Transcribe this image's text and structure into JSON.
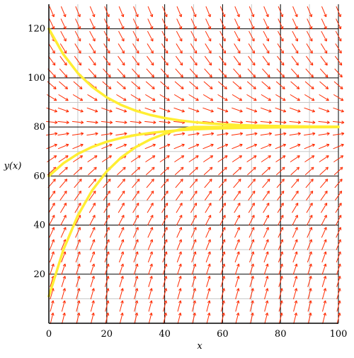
{
  "chart_data": {
    "type": "line",
    "subtype": "direction-field",
    "title": "",
    "xlabel": "x",
    "ylabel": "y(x)",
    "xlim": [
      0,
      100
    ],
    "ylim": [
      0,
      130
    ],
    "x_ticks": [
      0,
      20,
      40,
      60,
      80,
      100
    ],
    "x_tick_labels": [
      "0",
      "20",
      "40",
      "60",
      "80",
      "100"
    ],
    "y_ticks": [
      20,
      40,
      60,
      80,
      100,
      120
    ],
    "y_tick_labels": [
      "20",
      "40",
      "60",
      "80",
      "100",
      "120"
    ],
    "grid": true,
    "equilibrium": 80,
    "rate": 0.06,
    "field_color": "#ff2a00",
    "curve_color": "#ffee33",
    "field_x": [
      1,
      5,
      10,
      15,
      20,
      25,
      30,
      35,
      40,
      45,
      50,
      55,
      60,
      65,
      70,
      75,
      80,
      85,
      90,
      95,
      100
    ],
    "field_y": [
      2,
      7,
      12,
      17,
      22,
      27,
      32,
      37,
      42,
      47,
      52,
      57,
      62,
      67,
      72,
      77,
      82,
      87,
      92,
      97,
      102,
      107,
      112,
      117,
      122,
      127
    ],
    "series": [
      {
        "x": [
          0,
          5,
          10,
          15,
          20,
          25,
          30,
          35,
          40,
          45,
          50,
          55,
          60,
          65,
          70,
          75,
          80,
          85,
          90,
          95,
          100
        ],
        "values": [
          120,
          109.6,
          101.95,
          96.27,
          92.05,
          88.93,
          86.61,
          84.9,
          83.63,
          82.69,
          81.99,
          81.47,
          81.09,
          80.81,
          80.6,
          80.44,
          80.33,
          80.24,
          80.18,
          80.13,
          80.1
        ]
      },
      {
        "x": [
          0,
          5,
          10,
          15,
          20,
          25,
          30,
          35,
          40,
          45,
          50,
          55,
          60,
          65,
          70,
          75,
          80,
          85,
          90,
          95,
          100
        ],
        "values": [
          60,
          65.2,
          69.03,
          71.87,
          73.98,
          75.54,
          76.69,
          77.55,
          78.19,
          78.66,
          79.0,
          79.26,
          79.46,
          79.6,
          79.7,
          79.78,
          79.84,
          79.88,
          79.91,
          79.93,
          79.95
        ]
      },
      {
        "x": [
          0,
          5,
          10,
          15,
          20,
          25,
          30,
          35,
          40,
          45,
          50,
          55,
          60,
          65,
          70,
          75,
          80,
          85,
          90,
          95,
          100
        ],
        "values": [
          11,
          29.89,
          43.88,
          54.23,
          61.9,
          67.59,
          71.79,
          74.91,
          77.22,
          78.93,
          80.0,
          80.0,
          80.0,
          80.0,
          80.0,
          80.0,
          80.0,
          80.0,
          80.0,
          80.0,
          80.0
        ]
      }
    ]
  }
}
